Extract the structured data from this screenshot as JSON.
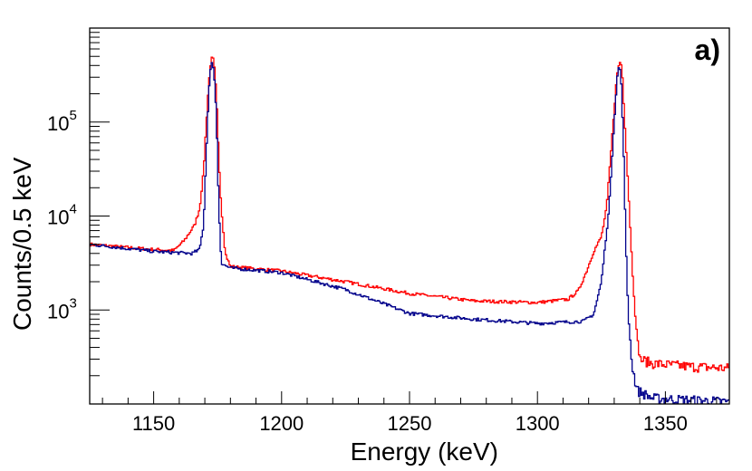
{
  "chart_data": {
    "type": "line",
    "style": "step-histogram",
    "panel_label": "a)",
    "xlabel": "Energy (keV)",
    "ylabel": "Counts/0.5 keV",
    "xlim": [
      1125,
      1375
    ],
    "ylim": [
      100,
      1000000
    ],
    "yscale": "log",
    "bin_width": 0.5,
    "grid": false,
    "x_ticks": [
      "1150",
      "1200",
      "1250",
      "1300",
      "1350"
    ],
    "x_tick_values": [
      1150,
      1200,
      1250,
      1300,
      1350
    ],
    "y_ticks": [
      {
        "base": "10",
        "exp": "3",
        "value": 1000
      },
      {
        "base": "10",
        "exp": "4",
        "value": 10000
      },
      {
        "base": "10",
        "exp": "5",
        "value": 100000
      }
    ],
    "series": [
      {
        "name": "red",
        "color": "#ff0000",
        "points": [
          [
            1125,
            5000
          ],
          [
            1150,
            4400
          ],
          [
            1158,
            4300
          ],
          [
            1162,
            5500
          ],
          [
            1166,
            8000
          ],
          [
            1168,
            12000
          ],
          [
            1169.5,
            30000
          ],
          [
            1170.5,
            90000
          ],
          [
            1171.5,
            250000
          ],
          [
            1172.5,
            480000
          ],
          [
            1173.5,
            460000
          ],
          [
            1174.5,
            200000
          ],
          [
            1175.5,
            40000
          ],
          [
            1176.5,
            12000
          ],
          [
            1178,
            4000
          ],
          [
            1180,
            2900
          ],
          [
            1200,
            2600
          ],
          [
            1225,
            2000
          ],
          [
            1250,
            1500
          ],
          [
            1275,
            1250
          ],
          [
            1300,
            1200
          ],
          [
            1312,
            1300
          ],
          [
            1316,
            1600
          ],
          [
            1319,
            2500
          ],
          [
            1322,
            4200
          ],
          [
            1325,
            6000
          ],
          [
            1327,
            12000
          ],
          [
            1329,
            60000
          ],
          [
            1331,
            300000
          ],
          [
            1332,
            440000
          ],
          [
            1333,
            400000
          ],
          [
            1334,
            120000
          ],
          [
            1335.5,
            20000
          ],
          [
            1337,
            3000
          ],
          [
            1338.5,
            700
          ],
          [
            1340,
            300
          ],
          [
            1345,
            270
          ],
          [
            1360,
            250
          ],
          [
            1375,
            240
          ]
        ]
      },
      {
        "name": "blue",
        "color": "#00008b",
        "points": [
          [
            1125,
            5000
          ],
          [
            1150,
            4200
          ],
          [
            1165,
            4000
          ],
          [
            1168,
            4400
          ],
          [
            1169.5,
            8000
          ],
          [
            1170.5,
            40000
          ],
          [
            1171.5,
            200000
          ],
          [
            1172.5,
            430000
          ],
          [
            1173.5,
            380000
          ],
          [
            1174.5,
            120000
          ],
          [
            1175.5,
            12000
          ],
          [
            1176.5,
            3100
          ],
          [
            1180,
            2800
          ],
          [
            1200,
            2500
          ],
          [
            1225,
            1650
          ],
          [
            1250,
            920
          ],
          [
            1275,
            800
          ],
          [
            1300,
            720
          ],
          [
            1318,
            760
          ],
          [
            1322,
            900
          ],
          [
            1325,
            2000
          ],
          [
            1328,
            12000
          ],
          [
            1330,
            100000
          ],
          [
            1331.5,
            380000
          ],
          [
            1332.5,
            360000
          ],
          [
            1333.5,
            80000
          ],
          [
            1334.5,
            6000
          ],
          [
            1335.5,
            900
          ],
          [
            1337,
            250
          ],
          [
            1339,
            140
          ],
          [
            1345,
            115
          ],
          [
            1360,
            110
          ],
          [
            1375,
            105
          ]
        ]
      }
    ]
  }
}
